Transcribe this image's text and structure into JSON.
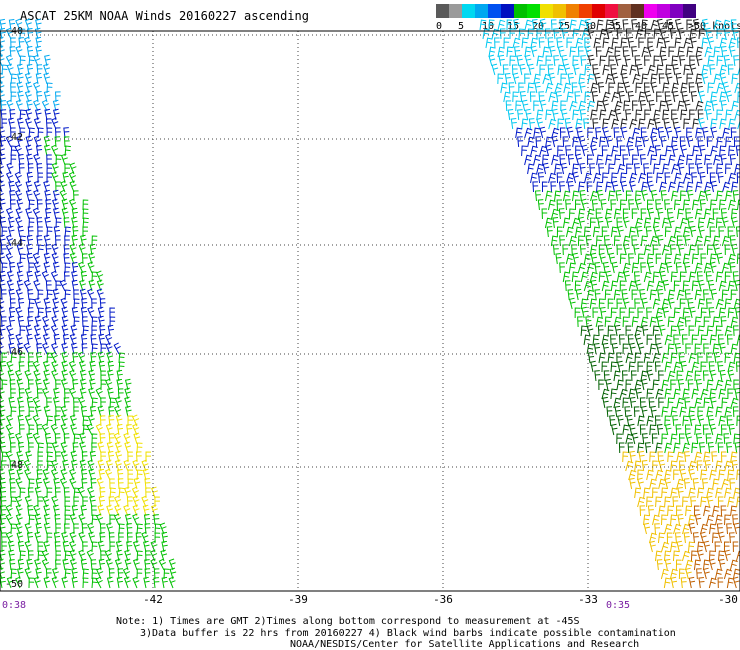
{
  "title": "ASCAT 25KM NOAA Winds 20160227 ascending",
  "legend": {
    "colors": [
      "#5a5a5a",
      "#9a9a9a",
      "#00d8f0",
      "#00a8f0",
      "#0050f0",
      "#0010c0",
      "#00c000",
      "#00e000",
      "#f0e000",
      "#f0c000",
      "#f08000",
      "#f04000",
      "#e00000",
      "#f01040",
      "#a06040",
      "#603020",
      "#f000f0",
      "#c000e0",
      "#8000c0",
      "#400080"
    ],
    "labels": [
      "0",
      "5",
      "10",
      "15",
      "20",
      "25",
      "30",
      "35",
      "40",
      "45",
      ">50 knots"
    ]
  },
  "map": {
    "x_ticks": [
      "-42",
      "-39",
      "-36",
      "-33",
      "-30"
    ],
    "y_ticks": [
      "-40",
      "-42",
      "-44",
      "-46",
      "-48",
      "-50"
    ],
    "time_labels": [
      "0:38",
      "0:35"
    ]
  },
  "footer": {
    "line1": "Note: 1) Times are GMT 2)Times along bottom correspond to measurement at -45S",
    "line2": "3)Data buffer is 22 hrs from 20160227 4) Black wind barbs indicate possible contamination",
    "line3": "NOAA/NESDIS/Center for Satellite Applications and Research"
  }
}
